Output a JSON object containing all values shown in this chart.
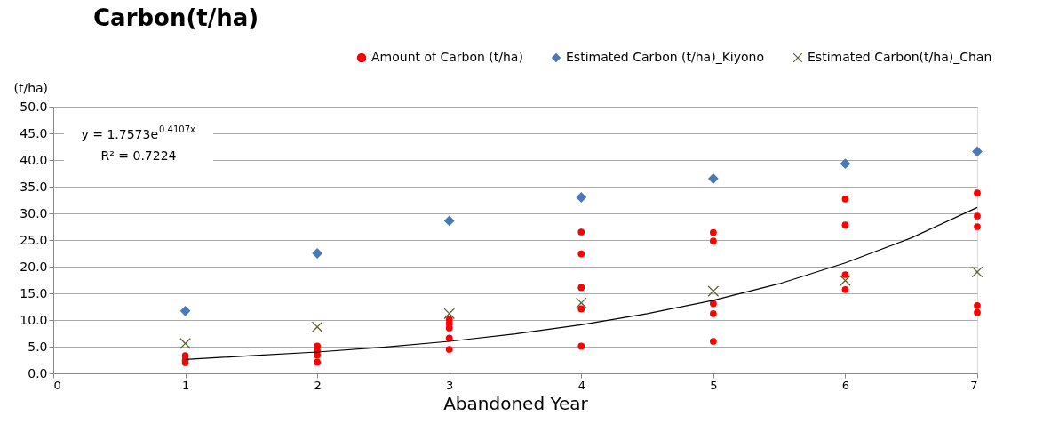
{
  "chart_data": {
    "type": "scatter",
    "title": "Carbon(t/ha)",
    "xlabel": "Abandoned   Year",
    "ylabel": "(t/ha)",
    "xlim": [
      0,
      7
    ],
    "xticks": [
      0,
      1,
      2,
      3,
      4,
      5,
      6,
      7
    ],
    "ylim": [
      0,
      50
    ],
    "yticks": [
      {
        "value": 0,
        "label": "0.0"
      },
      {
        "value": 5,
        "label": "5.0"
      },
      {
        "value": 10,
        "label": "10.0"
      },
      {
        "value": 15,
        "label": "15.0"
      },
      {
        "value": 20,
        "label": "20.0"
      },
      {
        "value": 25,
        "label": "25.0"
      },
      {
        "value": 30,
        "label": "30.0"
      },
      {
        "value": 35,
        "label": "35.0"
      },
      {
        "value": 40,
        "label": "40.0"
      },
      {
        "value": 45,
        "label": "45.0"
      },
      {
        "value": 50,
        "label": "50.0"
      }
    ],
    "grid": "y",
    "legend": "top right",
    "annotations": [
      "y = 1.7573e$^{0.4107x}$",
      "R² = 0.7224"
    ],
    "series": [
      {
        "name": "Amount of Carbon (t/ha)",
        "color": "#ff0000",
        "marker": "circle",
        "x": [
          1,
          1,
          1,
          2,
          2,
          2,
          2,
          3,
          3,
          3,
          3,
          3,
          4,
          4,
          4,
          4,
          4,
          5,
          5,
          5,
          5,
          5,
          6,
          6,
          6,
          6,
          7,
          7,
          7,
          7,
          7
        ],
        "values": [
          3.3,
          2.5,
          2.0,
          5.1,
          4.2,
          3.4,
          2.1,
          10.1,
          9.3,
          8.5,
          6.6,
          4.5,
          26.5,
          22.4,
          16.1,
          12.1,
          5.1,
          26.4,
          24.8,
          13.1,
          11.2,
          6.0,
          32.7,
          27.8,
          18.5,
          15.7,
          33.8,
          29.5,
          27.5,
          12.7,
          11.4
        ]
      },
      {
        "name": "Estimated Carbon (t/ha)_Kiyono",
        "color": "#4a7ab5",
        "marker": "diamond",
        "x": [
          1,
          2,
          3,
          4,
          5,
          6,
          7
        ],
        "values": [
          11.7,
          22.5,
          28.6,
          33.0,
          36.5,
          39.3,
          41.6
        ]
      },
      {
        "name": "Estimated Carbon(t/ha)_Chan",
        "color": "#5f5f30",
        "marker": "cross",
        "x": [
          1,
          2,
          3,
          4,
          5,
          6,
          7
        ],
        "values": [
          5.6,
          8.7,
          11.2,
          13.2,
          15.4,
          17.4,
          19.0
        ]
      },
      {
        "type": "line",
        "color": "#000000",
        "marker": "none",
        "x": [
          1,
          1.5,
          2,
          2.5,
          3,
          3.5,
          4,
          4.5,
          5,
          5.5,
          6,
          6.5,
          7
        ],
        "values": [
          2.6,
          3.3,
          4.0,
          4.9,
          6.0,
          7.4,
          9.1,
          11.2,
          13.7,
          16.8,
          20.7,
          25.4,
          31.1
        ]
      }
    ]
  }
}
